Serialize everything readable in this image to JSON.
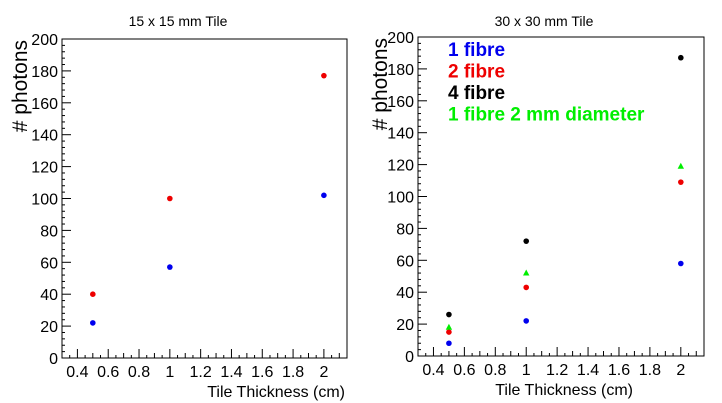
{
  "chart_data": [
    {
      "type": "scatter",
      "title": "15 x 15 mm Tile",
      "xlabel": "Tile Thickness (cm)",
      "ylabel": "# photons",
      "xlim": [
        0.3,
        2.15
      ],
      "ylim": [
        0,
        200
      ],
      "xticks": [
        "0.4",
        "0.6",
        "0.8",
        "1",
        "1.2",
        "1.4",
        "1.6",
        "1.8",
        "2"
      ],
      "yticks": [
        "0",
        "20",
        "40",
        "60",
        "80",
        "100",
        "120",
        "140",
        "160",
        "180",
        "200"
      ],
      "grid": false,
      "legend": null,
      "series": [
        {
          "color": "#0000ee",
          "marker": "circle",
          "x": [
            0.5,
            1,
            2
          ],
          "y": [
            22,
            57,
            102
          ]
        },
        {
          "color": "#ee0000",
          "marker": "circle",
          "x": [
            0.5,
            1,
            2
          ],
          "y": [
            40,
            100,
            177
          ]
        }
      ]
    },
    {
      "type": "scatter",
      "title": "30 x 30 mm Tile",
      "xlabel": "Tile Thickness (cm)",
      "ylabel": "# photons",
      "xlim": [
        0.3,
        2.15
      ],
      "ylim": [
        0,
        200
      ],
      "xticks": [
        "0.4",
        "0.6",
        "0.8",
        "1",
        "1.2",
        "1.4",
        "1.6",
        "1.8",
        "2"
      ],
      "yticks": [
        "0",
        "20",
        "40",
        "60",
        "80",
        "100",
        "120",
        "140",
        "160",
        "180",
        "200"
      ],
      "grid": false,
      "legend": "top-left",
      "series": [
        {
          "name": "1 fibre",
          "color": "#0000ee",
          "marker": "circle",
          "x": [
            0.5,
            1,
            2
          ],
          "y": [
            8,
            22,
            58
          ]
        },
        {
          "name": "2 fibre",
          "color": "#ee0000",
          "marker": "circle",
          "x": [
            0.5,
            1,
            2
          ],
          "y": [
            15,
            43,
            109
          ]
        },
        {
          "name": "4 fibre",
          "color": "#000000",
          "marker": "circle",
          "x": [
            0.5,
            1,
            2
          ],
          "y": [
            26,
            72,
            187
          ]
        },
        {
          "name": "1 fibre 2 mm diameter",
          "color": "#00ee00",
          "marker": "triangle",
          "x": [
            0.5,
            1,
            2
          ],
          "y": [
            18,
            52,
            119
          ]
        }
      ]
    }
  ]
}
